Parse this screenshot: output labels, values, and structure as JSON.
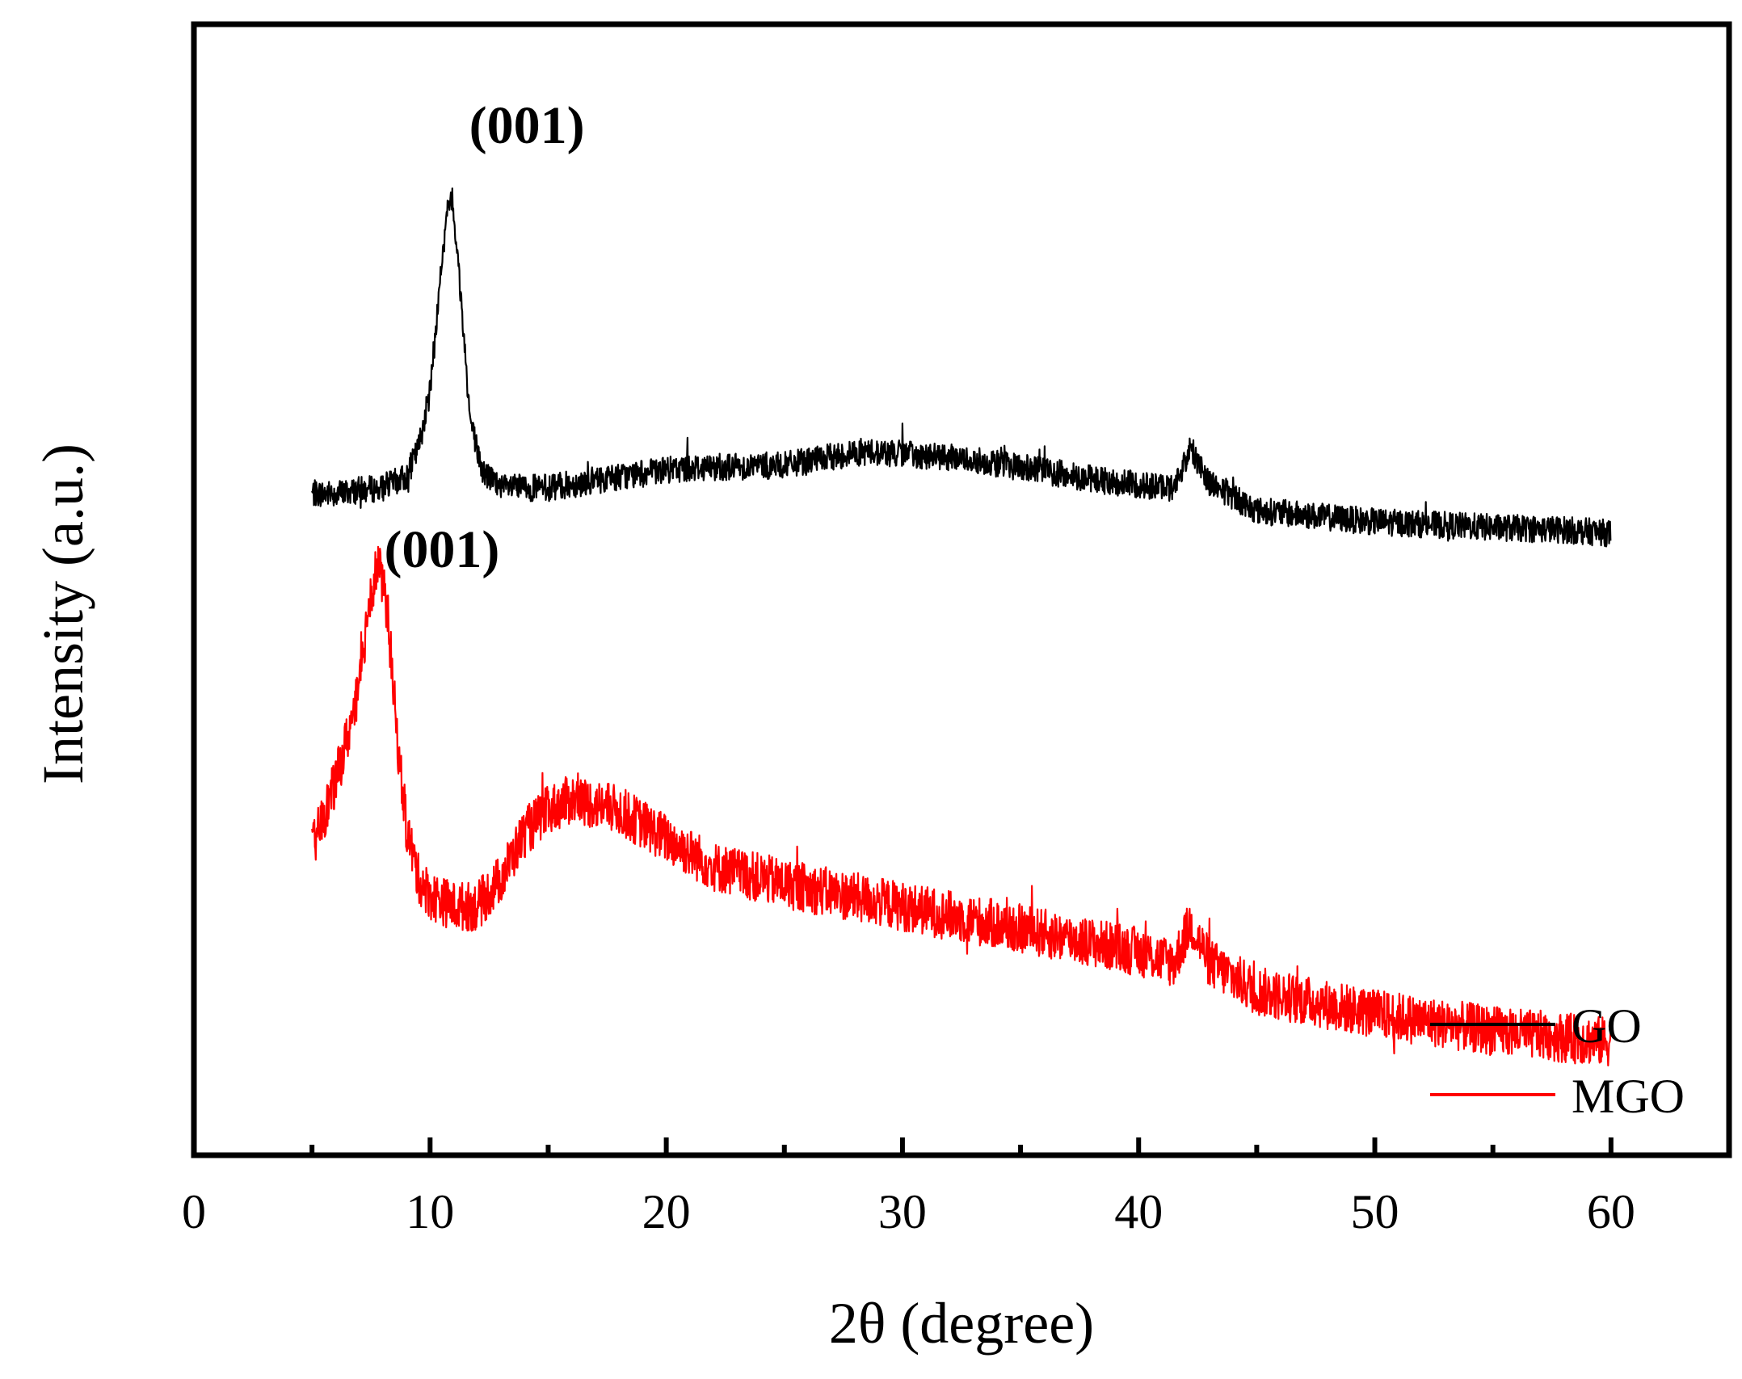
{
  "chart_data": {
    "type": "line",
    "title": "",
    "xlabel": "2θ (degree)",
    "ylabel": "Intensity (a.u.)",
    "xlim": [
      0,
      65
    ],
    "ylim": [
      0,
      1
    ],
    "x_ticks": [
      "0",
      "10",
      "20",
      "30",
      "40",
      "50",
      "60"
    ],
    "y_ticks_shown": false,
    "grid": false,
    "legend_position": "bottom-right",
    "annotations": [
      {
        "text": "(001)",
        "x": 14.1,
        "y": 0.895
      },
      {
        "text": "(001)",
        "x": 10.5,
        "y": 0.52
      }
    ],
    "series": [
      {
        "name": "GO",
        "color": "#000000",
        "x": [
          5,
          6,
          7,
          8,
          9,
          9.5,
          10,
          10.5,
          10.8,
          11.0,
          11.3,
          11.7,
          12.2,
          13,
          15,
          18,
          21,
          25,
          28.3,
          30,
          33,
          36,
          39,
          41.5,
          42.2,
          43,
          45,
          50,
          55,
          58,
          60
        ],
        "y": [
          0.585,
          0.585,
          0.588,
          0.59,
          0.6,
          0.625,
          0.675,
          0.79,
          0.845,
          0.835,
          0.76,
          0.65,
          0.605,
          0.59,
          0.59,
          0.6,
          0.608,
          0.61,
          0.622,
          0.62,
          0.615,
          0.605,
          0.595,
          0.59,
          0.625,
          0.595,
          0.57,
          0.56,
          0.555,
          0.553,
          0.55
        ]
      },
      {
        "name": "MGO",
        "color": "#ff0000",
        "x": [
          5,
          5.5,
          6,
          6.5,
          7,
          7.4,
          7.8,
          8.2,
          8.6,
          9,
          9.5,
          10,
          11,
          12,
          13,
          14,
          15,
          16,
          17,
          18,
          20,
          22,
          25,
          30,
          35,
          40,
          41.5,
          42.2,
          43,
          45,
          50,
          55,
          60
        ],
        "y": [
          0.27,
          0.3,
          0.33,
          0.37,
          0.41,
          0.49,
          0.525,
          0.48,
          0.37,
          0.29,
          0.245,
          0.23,
          0.22,
          0.22,
          0.245,
          0.285,
          0.305,
          0.315,
          0.31,
          0.305,
          0.28,
          0.255,
          0.24,
          0.22,
          0.2,
          0.18,
          0.17,
          0.205,
          0.17,
          0.145,
          0.125,
          0.11,
          0.1
        ]
      }
    ]
  }
}
